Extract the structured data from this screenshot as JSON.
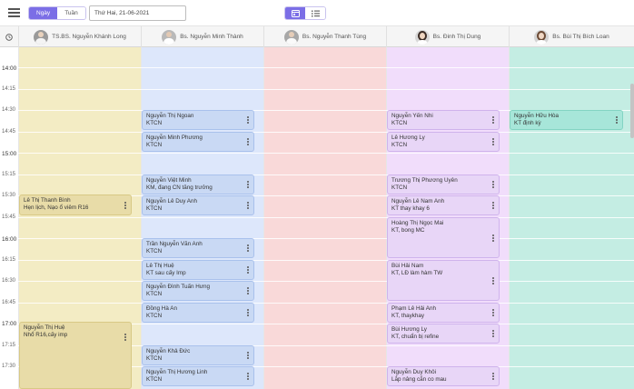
{
  "toolbar": {
    "view_day": "Ngày",
    "view_week": "Tuần",
    "date_value": "Thứ Hai, 21-06-2021"
  },
  "icons": {
    "menu": "hamburger-menu-icon",
    "clock": "clock-icon",
    "calendar": "calendar-view-icon",
    "list": "list-view-icon"
  },
  "colors": {
    "accent": "#7b6ee6",
    "col1": "#f3ecc4",
    "col2": "#dde7fb",
    "col3": "#f9d9d9",
    "col4": "#f1ddfb",
    "col5": "#c4ede3"
  },
  "doctors": [
    {
      "name": "TS.BS. Nguyễn Khánh Long"
    },
    {
      "name": "Bs. Nguyễn Minh Thành"
    },
    {
      "name": "Bs. Nguyễn Thanh Tùng"
    },
    {
      "name": "Bs. Đinh Thị Dung"
    },
    {
      "name": "Bs. Bùi Thị Bích Loan"
    }
  ],
  "times": [
    "14:00",
    "14:15",
    "14:30",
    "14:45",
    "15:00",
    "15:15",
    "15:30",
    "15:45",
    "16:00",
    "16:15",
    "16:30",
    "16:45",
    "17:00",
    "17:15",
    "17:30"
  ],
  "events": {
    "col1": [
      {
        "name": "Lê Thị Thanh Bình",
        "desc": "Hẹn lịch, Nạo ổ viêm R16"
      },
      {
        "name": "Nguyễn Thị Huệ",
        "desc": "Nhổ R16,cấy imp"
      }
    ],
    "col2": [
      {
        "name": "Nguyễn Thị Ngoan",
        "desc": "KTCN"
      },
      {
        "name": "Nguyễn Minh Phương",
        "desc": "KTCN"
      },
      {
        "name": "Nguyễn Việt Minh",
        "desc": "KM, đang CN tăng trưởng"
      },
      {
        "name": "Nguyễn Lê Duy Anh",
        "desc": "KTCN"
      },
      {
        "name": "Trần Nguyễn Văn Anh",
        "desc": "KTCN"
      },
      {
        "name": "Lê Thị Huệ",
        "desc": "KT sau cấy Imp"
      },
      {
        "name": "Nguyễn Đình Tuấn Hưng",
        "desc": "KTCN"
      },
      {
        "name": "Đồng Hà An",
        "desc": "KTCN"
      },
      {
        "name": "Nguyễn Khả Đức",
        "desc": "KTCN"
      },
      {
        "name": "Nguyễn Thị Hương Linh",
        "desc": "KTCN"
      }
    ],
    "col4": [
      {
        "name": "Nguyễn Yến Nhi",
        "desc": "KTCN"
      },
      {
        "name": "Lê Hương Ly",
        "desc": "KTCN"
      },
      {
        "name": "Trương Thị Phương Uyên",
        "desc": "KTCN"
      },
      {
        "name": "Nguyễn Lê Nam Anh",
        "desc": "KT thay khay 6"
      },
      {
        "name": "Hoàng Thị Ngọc Mai",
        "desc": "KT, bong MC"
      },
      {
        "name": "Bùi Hải Nam",
        "desc": "KT, LĐ làm hàm TW"
      },
      {
        "name": "Phạm Lê Hải Anh",
        "desc": "KT, thaykhay"
      },
      {
        "name": "Bùi Hương Ly",
        "desc": "KT, chuẩn bị refine"
      },
      {
        "name": "Nguyễn Duy Khôi",
        "desc": "Lắp nâng cắn co mau"
      }
    ],
    "col5": [
      {
        "name": "Nguyễn Hữu Hòa",
        "desc": "KT định kỳ"
      }
    ]
  }
}
